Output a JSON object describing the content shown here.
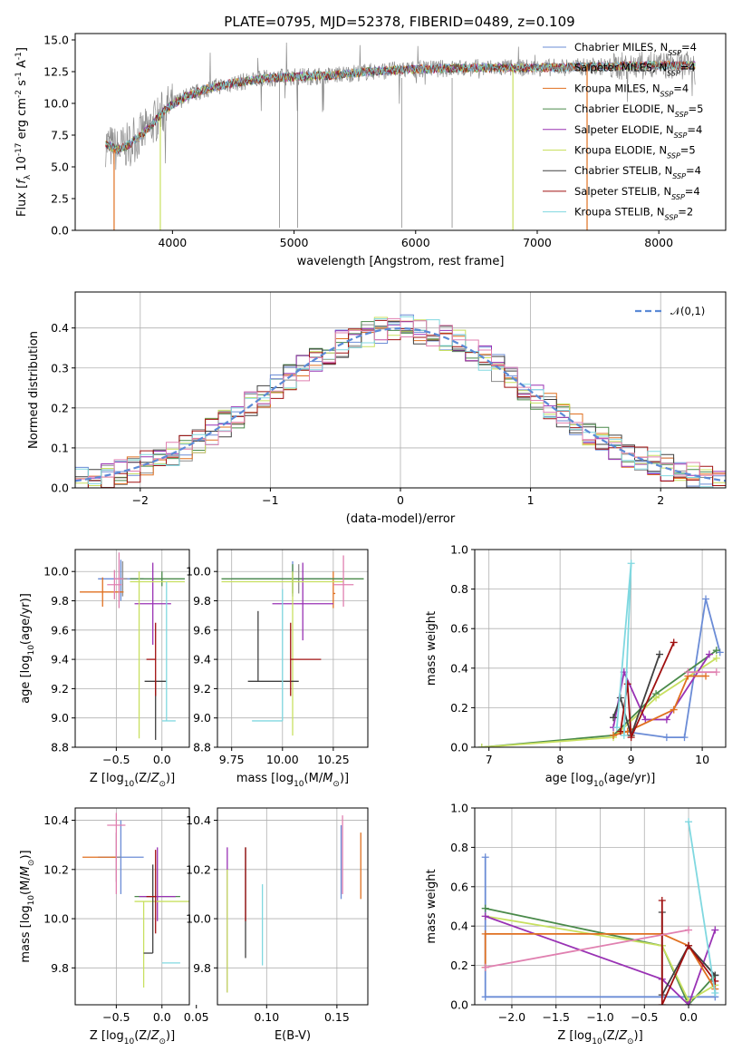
{
  "figure": {
    "title": "PLATE=0795, MJD=52378, FIBERID=0489, z=0.109"
  },
  "colors": {
    "chabrier_miles": "#6b8cd6",
    "salpeter_miles": "#8c8c8c",
    "kroupa_miles": "#e07020",
    "chabrier_elodie": "#4a8a4a",
    "salpeter_elodie": "#9932b4",
    "kroupa_elodie": "#c8e060",
    "chabrier_stelib": "#404040",
    "salpeter_stelib": "#a01010",
    "kroupa_stelib": "#80d8e0",
    "gauss": "#5b8ad6"
  },
  "chart_data": [
    {
      "type": "line",
      "title": "PLATE=0795, MJD=52378, FIBERID=0489, z=0.109",
      "xlabel": "wavelength [Angstrom, rest frame]",
      "ylabel": "Flux [f_λ 10^-17 erg cm^-2 s^-1 A^-1]",
      "xlim": [
        3200,
        8550
      ],
      "ylim": [
        0,
        15.5
      ],
      "xticks": [
        "4000",
        "5000",
        "6000",
        "7000",
        "8000"
      ],
      "yticks": [
        "0.0",
        "2.5",
        "5.0",
        "7.5",
        "10.0",
        "12.5",
        "15.0"
      ],
      "legend_position": "right",
      "legend": [
        {
          "base": "Chabrier MILES, N",
          "sub": "SSP",
          "tail": "=4",
          "color": "#6b8cd6"
        },
        {
          "base": "Salpeter MILES, N",
          "sub": "SSP",
          "tail": "=4",
          "color": "#8c8c8c"
        },
        {
          "base": "Kroupa MILES, N",
          "sub": "SSP",
          "tail": "=4",
          "color": "#e07020"
        },
        {
          "base": "Chabrier ELODIE, N",
          "sub": "SSP",
          "tail": "=5",
          "color": "#4a8a4a"
        },
        {
          "base": "Salpeter ELODIE, N",
          "sub": "SSP",
          "tail": "=4",
          "color": "#9932b4"
        },
        {
          "base": "Kroupa ELODIE, N",
          "sub": "SSP",
          "tail": "=5",
          "color": "#c8e060"
        },
        {
          "base": "Chabrier STELIB, N",
          "sub": "SSP",
          "tail": "=4",
          "color": "#404040"
        },
        {
          "base": "Salpeter STELIB, N",
          "sub": "SSP",
          "tail": "=4",
          "color": "#a01010"
        },
        {
          "base": "Kroupa STELIB, N",
          "sub": "SSP",
          "tail": "=2",
          "color": "#80d8e0"
        }
      ],
      "continuum": {
        "x": [
          3450,
          3550,
          3650,
          3800,
          3950,
          4100,
          4300,
          4500,
          4800,
          5000,
          5300,
          5600,
          6000,
          6500,
          7000,
          7500,
          8000,
          8300
        ],
        "y": [
          6.8,
          6.3,
          6.8,
          8.0,
          9.6,
          10.5,
          11.2,
          11.6,
          12.0,
          12.1,
          12.2,
          12.5,
          12.7,
          12.8,
          12.8,
          12.9,
          13.0,
          13.0
        ]
      },
      "model_ranges": [
        {
          "color": "#e07020",
          "x": [
            3520,
            7410
          ]
        },
        {
          "color": "#c8e060",
          "x": [
            3900,
            6800
          ]
        }
      ]
    },
    {
      "type": "bar",
      "xlabel": "(data-model)/error",
      "ylabel": "Normed distribution",
      "xlim": [
        -2.5,
        2.5
      ],
      "ylim": [
        0,
        0.49
      ],
      "xticks": [
        "−2",
        "−1",
        "0",
        "1",
        "2"
      ],
      "yticks": [
        "0.0",
        "0.1",
        "0.2",
        "0.3",
        "0.4"
      ],
      "legend": [
        {
          "label": "𝒩(0,1)",
          "color": "#5b8ad6"
        }
      ],
      "bin_width": 0.1,
      "series_colors": [
        "#6b8cd6",
        "#8c8c8c",
        "#e07020",
        "#4a8a4a",
        "#9932b4",
        "#c8e060",
        "#404040",
        "#a01010",
        "#80d8e0",
        "#e080b0"
      ]
    },
    {
      "type": "scatter",
      "xlabel": "Z [log10(Z/Z⊙)]",
      "ylabel": "age [log10(age/yr)]",
      "xlim": [
        -0.95,
        0.3
      ],
      "ylim": [
        8.8,
        10.15
      ],
      "xticks": [
        "−0.5",
        "0.0"
      ],
      "yticks": [
        "8.8",
        "9.0",
        "9.2",
        "9.4",
        "9.6",
        "9.8",
        "10.0"
      ],
      "points": [
        {
          "x": -0.45,
          "y": 9.95,
          "xerr": [
            0.25,
            0.25
          ],
          "yerr": [
            0.15,
            0.13
          ],
          "color": "#6b8cd6"
        },
        {
          "x": -0.43,
          "y": 9.95,
          "xerr": [
            0.05,
            0.05
          ],
          "yerr": [
            0.12,
            0.12
          ],
          "color": "#8c8c8c"
        },
        {
          "x": -0.65,
          "y": 9.86,
          "xerr": [
            0.25,
            0.23
          ],
          "yerr": [
            0.1,
            0.1
          ],
          "color": "#e07020"
        },
        {
          "x": 0.0,
          "y": 9.95,
          "xerr": [
            0.35,
            0.25
          ],
          "yerr": [
            0.05,
            0.05
          ],
          "color": "#4a8a4a"
        },
        {
          "x": -0.1,
          "y": 9.78,
          "xerr": [
            0.2,
            0.2
          ],
          "yerr": [
            0.28,
            0.28
          ],
          "color": "#9932b4"
        },
        {
          "x": -0.25,
          "y": 9.93,
          "xerr": [
            0.1,
            0.5
          ],
          "yerr": [
            1.07,
            0.07
          ],
          "color": "#c8e060"
        },
        {
          "x": -0.07,
          "y": 9.25,
          "xerr": [
            0.12,
            0.12
          ],
          "yerr": [
            0.4,
            0.0
          ],
          "color": "#404040"
        },
        {
          "x": -0.07,
          "y": 9.4,
          "xerr": [
            0.1,
            0.0
          ],
          "yerr": [
            0.25,
            0.25
          ],
          "color": "#a01010"
        },
        {
          "x": 0.05,
          "y": 8.98,
          "xerr": [
            0.05,
            0.1
          ],
          "yerr": [
            0.0,
            0.95
          ],
          "color": "#80d8e0"
        },
        {
          "x": -0.47,
          "y": 9.95,
          "xerr": [
            0.05,
            0.05
          ],
          "yerr": [
            0.2,
            0.18
          ],
          "color": "#e080b0"
        },
        {
          "x": -0.52,
          "y": 9.91,
          "xerr": [
            0.08,
            0.08
          ],
          "yerr": [
            0.1,
            0.1
          ],
          "color": "#e080b0"
        }
      ]
    },
    {
      "type": "scatter",
      "xlabel": "mass [log10(M/M⊙)]",
      "ylabel": "",
      "xlim": [
        9.68,
        10.42
      ],
      "ylim": [
        8.8,
        10.15
      ],
      "xticks": [
        "9.75",
        "10.00",
        "10.25"
      ],
      "yticks": [
        "8.8",
        "9.0",
        "9.2",
        "9.4",
        "9.6",
        "9.8",
        "10.0"
      ],
      "points": [
        {
          "x": 10.05,
          "y": 9.95,
          "xerr": [
            0.3,
            0.25
          ],
          "yerr": [
            0.12,
            0.12
          ],
          "color": "#6b8cd6"
        },
        {
          "x": 10.08,
          "y": 9.95,
          "xerr": [
            0.02,
            0.02
          ],
          "yerr": [
            0.1,
            0.1
          ],
          "color": "#8c8c8c"
        },
        {
          "x": 10.25,
          "y": 9.85,
          "xerr": [
            0.0,
            0.01
          ],
          "yerr": [
            0.1,
            0.15
          ],
          "color": "#e07020"
        },
        {
          "x": 10.05,
          "y": 9.95,
          "xerr": [
            0.35,
            0.35
          ],
          "yerr": [
            0.1,
            0.1
          ],
          "color": "#4a8a4a"
        },
        {
          "x": 10.1,
          "y": 9.78,
          "xerr": [
            0.15,
            0.15
          ],
          "yerr": [
            0.25,
            0.28
          ],
          "color": "#9932b4"
        },
        {
          "x": 10.05,
          "y": 9.93,
          "xerr": [
            0.35,
            0.25
          ],
          "yerr": [
            1.05,
            0.07
          ],
          "color": "#c8e060"
        },
        {
          "x": 9.88,
          "y": 9.25,
          "xerr": [
            0.05,
            0.2
          ],
          "yerr": [
            0.0,
            0.48
          ],
          "color": "#404040"
        },
        {
          "x": 10.04,
          "y": 9.4,
          "xerr": [
            0.0,
            0.15
          ],
          "yerr": [
            0.25,
            0.25
          ],
          "color": "#a01010"
        },
        {
          "x": 10.0,
          "y": 8.98,
          "xerr": [
            0.15,
            0.0
          ],
          "yerr": [
            0.0,
            0.9
          ],
          "color": "#80d8e0"
        },
        {
          "x": 10.3,
          "y": 9.91,
          "xerr": [
            0.05,
            0.05
          ],
          "yerr": [
            0.15,
            0.2
          ],
          "color": "#e080b0"
        }
      ]
    },
    {
      "type": "line",
      "xlabel": "age [log10(age/yr)]",
      "ylabel": "mass weight",
      "xlim": [
        6.8,
        10.33
      ],
      "ylim": [
        0,
        1
      ],
      "xticks": [
        "7",
        "8",
        "9",
        "10"
      ],
      "yticks": [
        "0.0",
        "0.2",
        "0.4",
        "0.6",
        "0.8",
        "1.0"
      ],
      "series": [
        {
          "color": "#6b8cd6",
          "x": [
            8.9,
            9.5,
            9.75,
            10.05,
            10.25
          ],
          "y": [
            0.08,
            0.05,
            0.05,
            0.75,
            0.48
          ]
        },
        {
          "color": "#4a8a4a",
          "x": [
            6.9,
            8.75,
            9.35,
            10.2
          ],
          "y": [
            0.0,
            0.06,
            0.27,
            0.49
          ]
        },
        {
          "color": "#c8e060",
          "x": [
            6.9,
            8.75,
            9.35,
            10.2
          ],
          "y": [
            0.0,
            0.05,
            0.25,
            0.45
          ]
        },
        {
          "color": "#9932b4",
          "x": [
            8.75,
            8.9,
            9.2,
            9.5,
            10.1
          ],
          "y": [
            0.1,
            0.38,
            0.14,
            0.14,
            0.47
          ]
        },
        {
          "color": "#e07020",
          "x": [
            8.75,
            8.95,
            9.6,
            9.8,
            10.05
          ],
          "y": [
            0.06,
            0.08,
            0.19,
            0.36,
            0.36
          ]
        },
        {
          "color": "#404040",
          "x": [
            8.75,
            8.85,
            9.0,
            9.4
          ],
          "y": [
            0.15,
            0.25,
            0.06,
            0.47
          ]
        },
        {
          "color": "#a01010",
          "x": [
            8.85,
            8.95,
            9.0,
            9.6
          ],
          "y": [
            0.08,
            0.32,
            0.05,
            0.53
          ]
        },
        {
          "color": "#80d8e0",
          "x": [
            8.8,
            9.0,
            8.9
          ],
          "y": [
            0.1,
            0.93,
            0.06
          ]
        },
        {
          "color": "#e080b0",
          "x": [
            9.8,
            10.2
          ],
          "y": [
            0.38,
            0.38
          ]
        }
      ]
    },
    {
      "type": "scatter",
      "xlabel": "Z [log10(Z/Z⊙)]",
      "ylabel": "mass [log10(M/M⊙)]",
      "xlim": [
        -0.95,
        0.3
      ],
      "ylim": [
        9.65,
        10.45
      ],
      "xticks": [
        "−0.5",
        "0.0"
      ],
      "yticks": [
        "9.8",
        "10.0",
        "10.2",
        "10.4"
      ],
      "points": [
        {
          "x": -0.45,
          "y": 10.25,
          "xerr": [
            0.25,
            0.25
          ],
          "yerr": [
            0.15,
            0.15
          ],
          "color": "#6b8cd6"
        },
        {
          "x": -0.5,
          "y": 10.25,
          "xerr": [
            0.05,
            0.05
          ],
          "yerr": [
            0.1,
            0.1
          ],
          "color": "#8c8c8c"
        },
        {
          "x": -0.62,
          "y": 10.25,
          "xerr": [
            0.25,
            0.12
          ],
          "yerr": [
            0.0,
            0.0
          ],
          "color": "#e07020"
        },
        {
          "x": 0.0,
          "y": 10.09,
          "xerr": [
            0.3,
            0.2
          ],
          "yerr": [
            0.0,
            0.0
          ],
          "color": "#4a8a4a"
        },
        {
          "x": -0.05,
          "y": 10.09,
          "xerr": [
            0.2,
            0.2
          ],
          "yerr": [
            0.1,
            0.2
          ],
          "color": "#9932b4"
        },
        {
          "x": -0.2,
          "y": 10.07,
          "xerr": [
            0.1,
            0.5
          ],
          "yerr": [
            0.35,
            0.0
          ],
          "color": "#c8e060"
        },
        {
          "x": -0.1,
          "y": 9.86,
          "xerr": [
            0.1,
            0.0
          ],
          "yerr": [
            0.0,
            0.36
          ],
          "color": "#404040"
        },
        {
          "x": -0.07,
          "y": 10.09,
          "xerr": [
            0.1,
            0.0
          ],
          "yerr": [
            0.15,
            0.19
          ],
          "color": "#a01010"
        },
        {
          "x": 0.05,
          "y": 9.82,
          "xerr": [
            0.05,
            0.15
          ],
          "yerr": [
            0.0,
            0.0
          ],
          "color": "#80d8e0"
        },
        {
          "x": -0.5,
          "y": 10.38,
          "xerr": [
            0.1,
            0.1
          ],
          "yerr": [
            0.28,
            0.05
          ],
          "color": "#e080b0"
        }
      ]
    },
    {
      "type": "scatter",
      "xlabel": "E(B-V)",
      "ylabel": "",
      "xlim": [
        0.065,
        0.172
      ],
      "ylim": [
        9.65,
        10.45
      ],
      "xticks": [
        "0.05",
        "0.10",
        "0.15"
      ],
      "yticks": [
        "9.8",
        "10.0",
        "10.2",
        "10.4"
      ],
      "points": [
        {
          "x": 0.072,
          "y": 10.05,
          "yerr": [
            0.35,
            0.24
          ],
          "color": "#9932b4"
        },
        {
          "x": 0.072,
          "y": 10.0,
          "yerr": [
            0.3,
            0.2
          ],
          "color": "#c8e060"
        },
        {
          "x": 0.085,
          "y": 10.04,
          "yerr": [
            0.2,
            0.25
          ],
          "color": "#404040"
        },
        {
          "x": 0.085,
          "y": 10.09,
          "yerr": [
            0.1,
            0.2
          ],
          "color": "#a01010"
        },
        {
          "x": 0.097,
          "y": 9.98,
          "yerr": [
            0.17,
            0.16
          ],
          "color": "#80d8e0"
        },
        {
          "x": 0.153,
          "y": 10.18,
          "yerr": [
            0.1,
            0.2
          ],
          "color": "#6b8cd6"
        },
        {
          "x": 0.154,
          "y": 10.25,
          "yerr": [
            0.15,
            0.17
          ],
          "color": "#e080b0"
        },
        {
          "x": 0.167,
          "y": 10.2,
          "yerr": [
            0.12,
            0.15
          ],
          "color": "#e07020"
        }
      ]
    },
    {
      "type": "line",
      "xlabel": "Z [log10(Z/Z⊙)]",
      "ylabel": "mass weight",
      "xlim": [
        -2.42,
        0.42
      ],
      "ylim": [
        0,
        1
      ],
      "xticks": [
        "−2.0",
        "−1.5",
        "−1.0",
        "−0.5",
        "0.0"
      ],
      "yticks": [
        "0.0",
        "0.2",
        "0.4",
        "0.6",
        "0.8",
        "1.0"
      ],
      "series": [
        {
          "color": "#6b8cd6",
          "x": [
            -2.3,
            -2.3,
            0.3,
            0.3
          ],
          "y": [
            0.75,
            0.04,
            0.04,
            0.15
          ]
        },
        {
          "color": "#4a8a4a",
          "x": [
            -2.3,
            -0.3,
            0.0,
            0.3
          ],
          "y": [
            0.49,
            0.3,
            0.0,
            0.15
          ]
        },
        {
          "color": "#c8e060",
          "x": [
            -2.3,
            -0.3,
            0.0,
            0.3
          ],
          "y": [
            0.45,
            0.3,
            0.02,
            0.1
          ]
        },
        {
          "color": "#9932b4",
          "x": [
            -2.3,
            -0.3,
            0.0,
            0.3
          ],
          "y": [
            0.45,
            0.13,
            0.0,
            0.38
          ]
        },
        {
          "color": "#e07020",
          "x": [
            -2.3,
            -2.3,
            -0.3,
            0.0,
            0.3
          ],
          "y": [
            0.19,
            0.36,
            0.36,
            0.3,
            0.08
          ]
        },
        {
          "color": "#404040",
          "x": [
            -0.3,
            -0.3,
            0.0,
            0.3
          ],
          "y": [
            0.47,
            0.05,
            0.3,
            0.15
          ]
        },
        {
          "color": "#a01010",
          "x": [
            -0.3,
            -0.3,
            0.0,
            0.3
          ],
          "y": [
            0.53,
            0.0,
            0.3,
            0.12
          ]
        },
        {
          "color": "#80d8e0",
          "x": [
            0.0,
            0.3
          ],
          "y": [
            0.93,
            0.06
          ]
        },
        {
          "color": "#e080b0",
          "x": [
            -2.3,
            0.0
          ],
          "y": [
            0.19,
            0.38
          ]
        }
      ]
    }
  ]
}
